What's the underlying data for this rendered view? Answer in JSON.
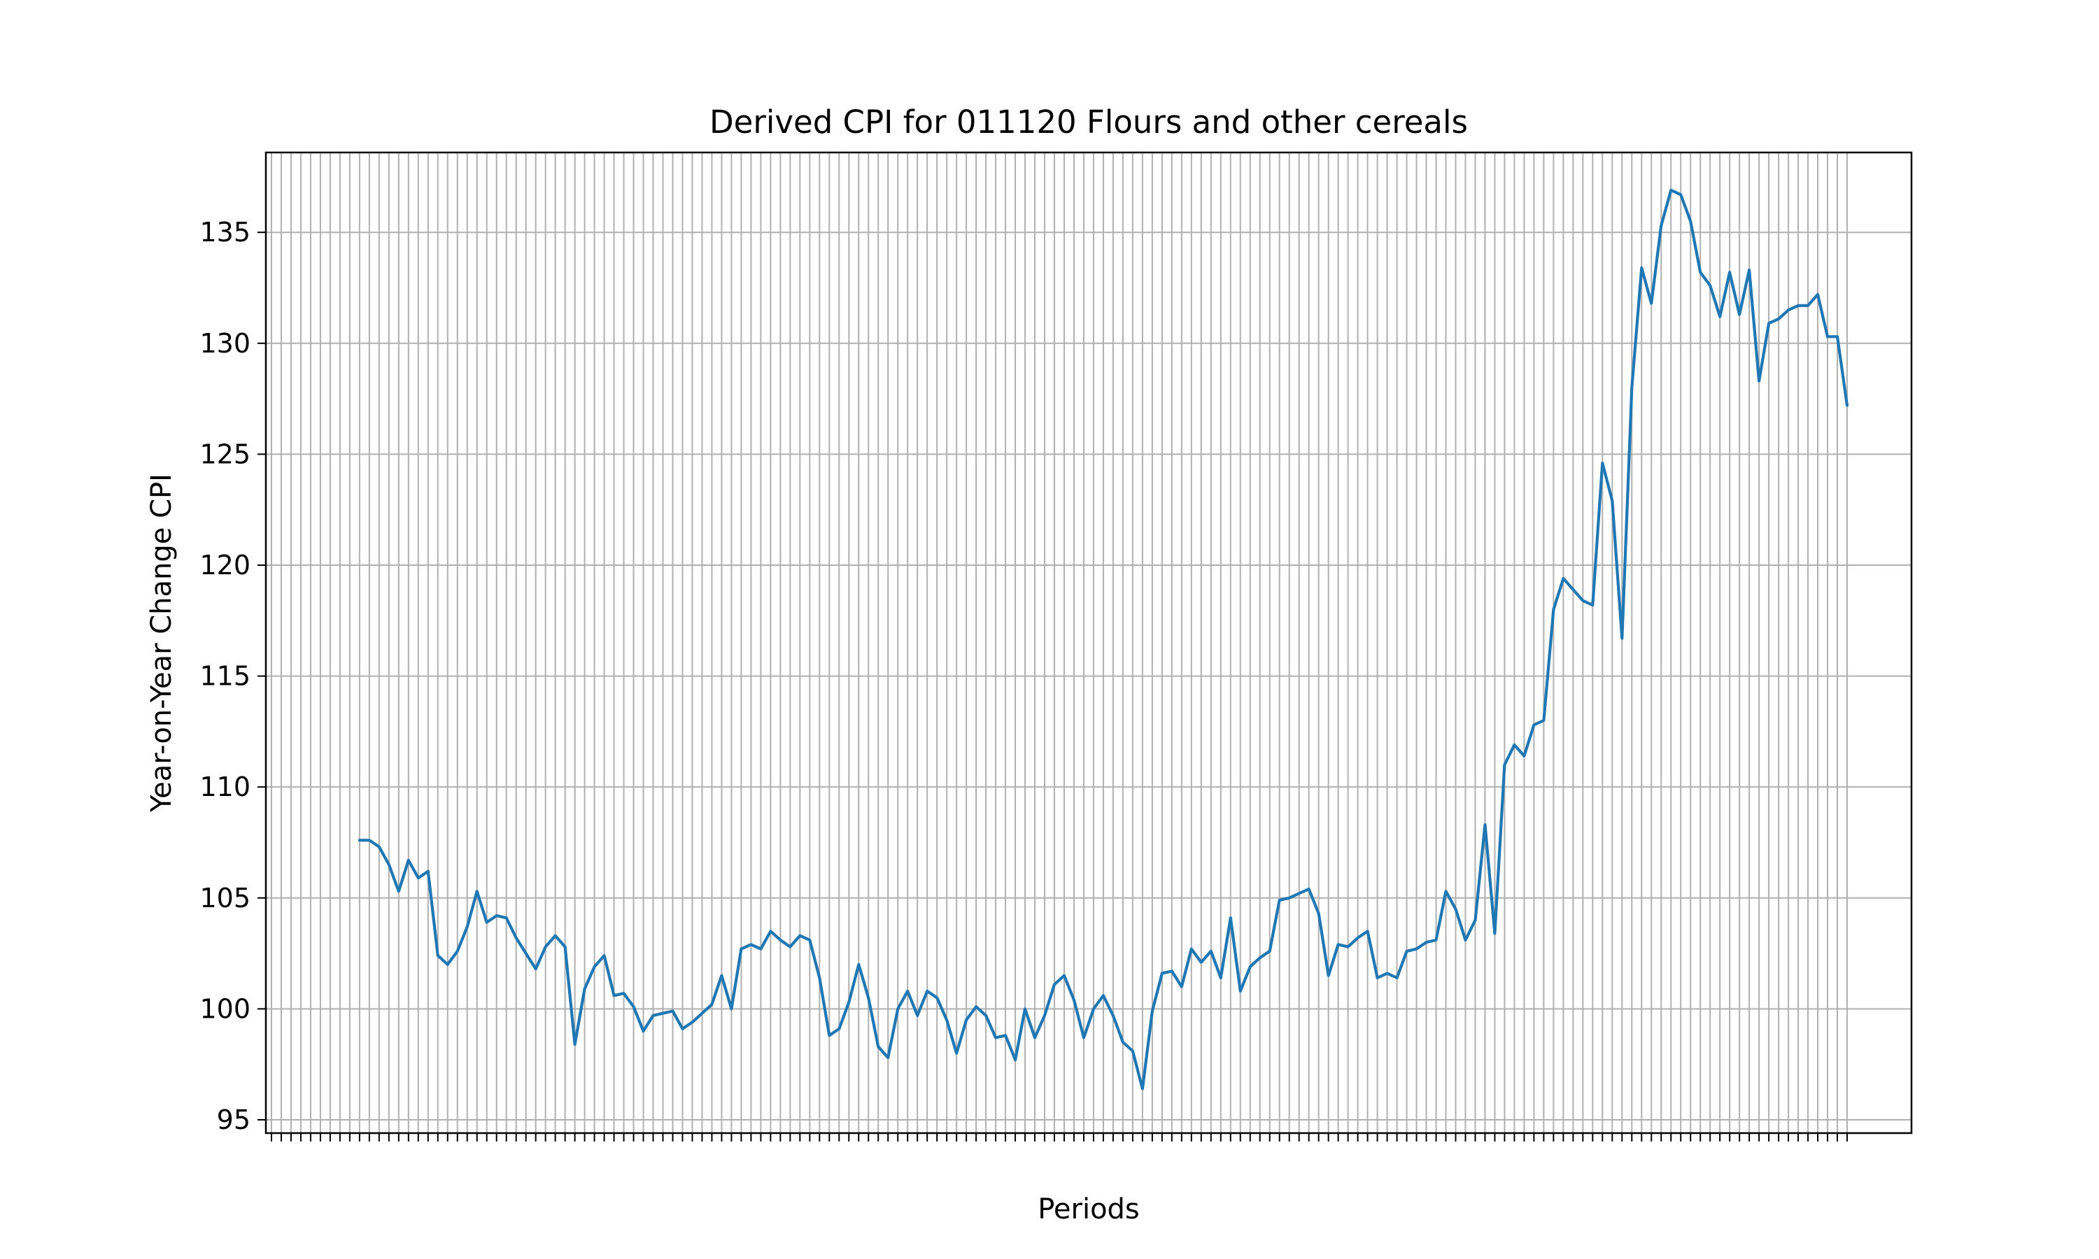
{
  "chart_data": {
    "type": "line",
    "title": "Derived CPI for 011120 Flours and other cereals",
    "xlabel": "Periods",
    "ylabel": "Year-on-Year Change CPI",
    "ylim": [
      94.4,
      138.6
    ],
    "yticks": [
      95,
      100,
      105,
      110,
      115,
      120,
      125,
      130,
      135
    ],
    "grid": true,
    "line_color": "#1f77b4",
    "x_tick_labels_note": "",
    "empty_leading_periods": 9,
    "series": [
      {
        "name": "",
        "values": [
          107.6,
          107.6,
          107.3,
          106.5,
          105.3,
          106.7,
          105.9,
          106.2,
          102.4,
          102.0,
          102.6,
          103.7,
          105.3,
          103.9,
          104.2,
          104.1,
          103.2,
          102.5,
          101.8,
          102.8,
          103.3,
          102.8,
          98.4,
          100.9,
          101.9,
          102.4,
          100.6,
          100.7,
          100.1,
          99.0,
          99.7,
          99.8,
          99.9,
          99.1,
          99.4,
          99.8,
          100.2,
          101.5,
          100.0,
          102.7,
          102.9,
          102.7,
          103.5,
          103.1,
          102.8,
          103.3,
          103.1,
          101.4,
          98.8,
          99.1,
          100.3,
          102.0,
          100.5,
          98.3,
          97.8,
          100.0,
          100.8,
          99.7,
          100.8,
          100.5,
          99.5,
          98.0,
          99.5,
          100.1,
          99.7,
          98.7,
          98.8,
          97.7,
          100.0,
          98.7,
          99.7,
          101.1,
          101.5,
          100.4,
          98.7,
          100.0,
          100.6,
          99.7,
          98.5,
          98.1,
          96.4,
          99.9,
          101.6,
          101.7,
          101.0,
          102.7,
          102.1,
          102.6,
          101.4,
          104.1,
          100.8,
          101.9,
          102.3,
          102.6,
          104.9,
          105.0,
          105.2,
          105.4,
          104.3,
          101.5,
          102.9,
          102.8,
          103.2,
          103.5,
          101.4,
          101.6,
          101.4,
          102.6,
          102.7,
          103.0,
          103.1,
          105.3,
          104.5,
          103.1,
          104.0,
          108.3,
          103.4,
          111.0,
          111.9,
          111.4,
          112.8,
          113.0,
          118.0,
          119.4,
          118.9,
          118.4,
          118.2,
          124.6,
          122.9,
          116.7,
          128.0,
          133.4,
          131.8,
          135.3,
          136.9,
          136.7,
          135.5,
          133.2,
          132.6,
          131.2,
          133.2,
          131.3,
          133.3,
          128.3,
          130.9,
          131.1,
          131.5,
          131.7,
          131.7,
          132.2,
          130.3,
          130.3,
          127.2
        ]
      }
    ]
  }
}
